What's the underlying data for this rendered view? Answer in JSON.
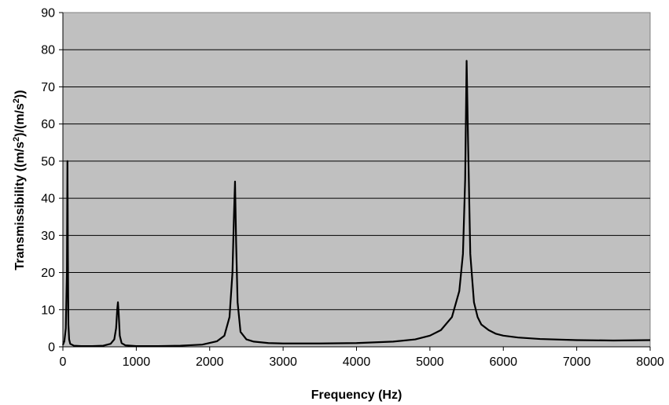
{
  "chart_data": {
    "type": "line",
    "title": "",
    "xlabel": "Frequency (Hz)",
    "ylabel_parts": [
      "Transmissibility ((m/s",
      "2",
      ")/(m/s",
      "2",
      "))"
    ],
    "xlim": [
      0,
      8000
    ],
    "ylim": [
      0,
      90
    ],
    "xticks": [
      0,
      1000,
      2000,
      3000,
      4000,
      5000,
      6000,
      7000,
      8000
    ],
    "yticks": [
      0,
      10,
      20,
      30,
      40,
      50,
      60,
      70,
      80,
      90
    ],
    "grid": "horizontal",
    "legend": "none",
    "plot_background": "#c0c0c0",
    "line_color": "#000000",
    "series": [
      {
        "x": [
          0,
          20,
          40,
          55,
          62,
          68,
          75,
          85,
          100,
          150,
          250,
          400,
          550,
          650,
          700,
          725,
          740,
          750,
          760,
          775,
          800,
          850,
          1000,
          1300,
          1600,
          1900,
          2100,
          2200,
          2270,
          2310,
          2330,
          2345,
          2360,
          2380,
          2420,
          2500,
          2600,
          2800,
          3000,
          3500,
          4000,
          4500,
          4800,
          5000,
          5150,
          5300,
          5400,
          5450,
          5480,
          5500,
          5520,
          5550,
          5600,
          5650,
          5700,
          5800,
          5900,
          6000,
          6200,
          6500,
          7000,
          7500,
          8000
        ],
        "y": [
          0.5,
          1.5,
          5,
          20,
          50,
          25,
          6,
          2,
          0.8,
          0.3,
          0.2,
          0.2,
          0.3,
          0.8,
          2,
          5,
          10,
          12,
          9,
          3,
          1,
          0.4,
          0.2,
          0.2,
          0.3,
          0.6,
          1.5,
          3,
          8,
          20,
          35,
          44.5,
          28,
          12,
          4,
          2,
          1.4,
          1,
          0.9,
          0.9,
          1,
          1.4,
          2,
          3,
          4.5,
          8,
          15,
          25,
          45,
          77,
          55,
          25,
          12,
          8,
          6,
          4.5,
          3.5,
          3,
          2.5,
          2.1,
          1.8,
          1.7,
          1.8
        ]
      }
    ]
  }
}
